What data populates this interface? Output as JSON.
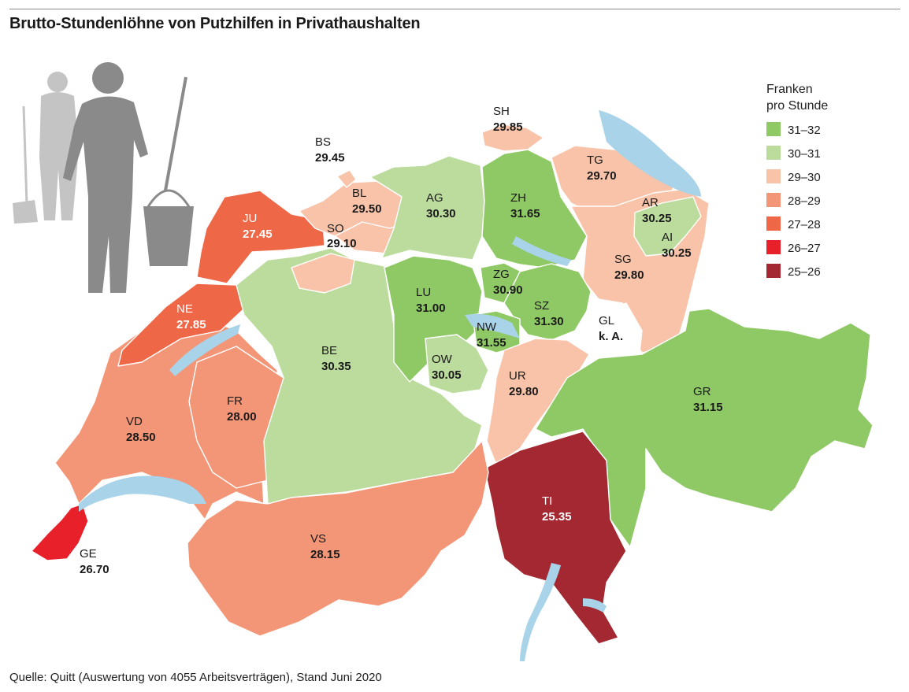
{
  "title": "Brutto-Stundenlöhne von Putzhilfen in Privathaushalten",
  "source": "Quelle: Quitt (Auswertung von 4055 Arbeitsverträgen), Stand Juni 2020",
  "legend": {
    "title_line1": "Franken",
    "title_line2": "pro Stunde",
    "classes": [
      {
        "label": "31–32",
        "color": "#8fc965"
      },
      {
        "label": "30–31",
        "color": "#bcdc9e"
      },
      {
        "label": "29–30",
        "color": "#f8c3a8"
      },
      {
        "label": "28–29",
        "color": "#f39678"
      },
      {
        "label": "27–28",
        "color": "#ee6848"
      },
      {
        "label": "26–27",
        "color": "#e8202a"
      },
      {
        "label": "25–26",
        "color": "#a32831"
      }
    ]
  },
  "cantons": [
    {
      "code": "BS",
      "value": "29.45"
    },
    {
      "code": "BL",
      "value": "29.50"
    },
    {
      "code": "SO",
      "value": "29.10"
    },
    {
      "code": "JU",
      "value": "27.45"
    },
    {
      "code": "NE",
      "value": "27.85"
    },
    {
      "code": "AG",
      "value": "30.30"
    },
    {
      "code": "ZH",
      "value": "31.65"
    },
    {
      "code": "SH",
      "value": "29.85"
    },
    {
      "code": "TG",
      "value": "29.70"
    },
    {
      "code": "AR",
      "value": "30.25"
    },
    {
      "code": "AI",
      "value": "30.25"
    },
    {
      "code": "SG",
      "value": "29.80"
    },
    {
      "code": "LU",
      "value": "31.00"
    },
    {
      "code": "ZG",
      "value": "30.90"
    },
    {
      "code": "SZ",
      "value": "31.30"
    },
    {
      "code": "NW",
      "value": "31.55"
    },
    {
      "code": "OW",
      "value": "30.05"
    },
    {
      "code": "UR",
      "value": "29.80"
    },
    {
      "code": "GL",
      "value": "k. A."
    },
    {
      "code": "BE",
      "value": "30.35"
    },
    {
      "code": "FR",
      "value": "28.00"
    },
    {
      "code": "VD",
      "value": "28.50"
    },
    {
      "code": "GE",
      "value": "26.70"
    },
    {
      "code": "VS",
      "value": "28.15"
    },
    {
      "code": "TI",
      "value": "25.35"
    },
    {
      "code": "GR",
      "value": "31.15"
    }
  ]
}
